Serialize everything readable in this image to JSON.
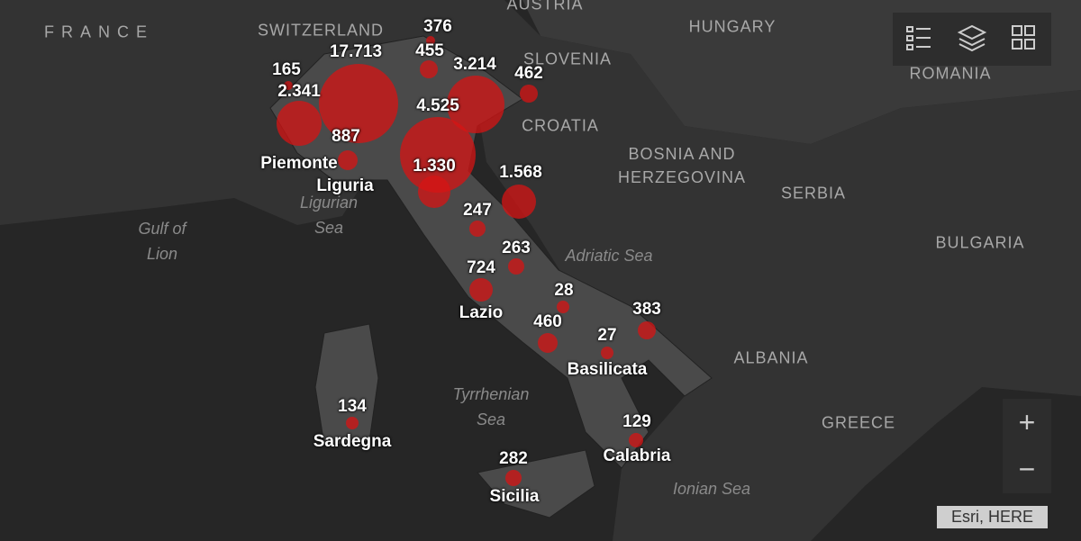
{
  "places": [
    "FRANCE",
    "SWITZERLAND",
    "AUSTRIA",
    "HUNGARY",
    "SLOVENIA",
    "ROMANIA",
    "CROATIA",
    "BOSNIA AND HERZEGOVINA",
    "SERBIA",
    "BULGARIA",
    "ALBANIA",
    "GREECE"
  ],
  "seas": [
    "Gulf of Lion",
    "Ligurian Sea",
    "Adriatic Sea",
    "Tyrrhenian Sea",
    "Ionian Sea"
  ],
  "regions": [
    {
      "count": "376"
    },
    {
      "count": "455"
    },
    {
      "count": "165"
    },
    {
      "count": "17.713"
    },
    {
      "count": "2.341",
      "name": "Piemonte"
    },
    {
      "count": "3.214"
    },
    {
      "count": "462"
    },
    {
      "count": "4.525"
    },
    {
      "count": "887",
      "name": "Liguria"
    },
    {
      "count": "1.330"
    },
    {
      "count": "1.568"
    },
    {
      "count": "247"
    },
    {
      "count": "263"
    },
    {
      "count": "724",
      "name": "Lazio"
    },
    {
      "count": "28"
    },
    {
      "count": "460"
    },
    {
      "count": "383"
    },
    {
      "count": "27",
      "name": "Basilicata"
    },
    {
      "count": "134",
      "name": "Sardegna"
    },
    {
      "count": "129",
      "name": "Calabria"
    },
    {
      "count": "282",
      "name": "Sicilia"
    }
  ],
  "controls": {
    "zoom_in": "+",
    "zoom_out": "−"
  },
  "attribution": "Esri, HERE"
}
